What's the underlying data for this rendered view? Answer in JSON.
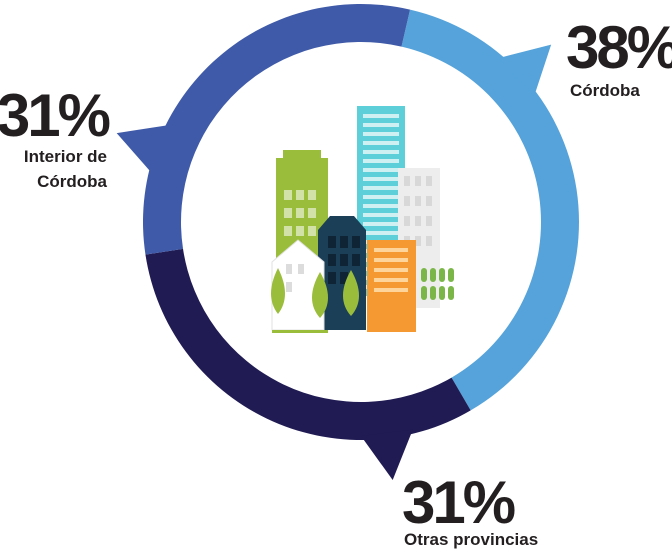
{
  "chart_data": {
    "type": "pie",
    "categories": [
      "Córdoba",
      "Otras provincias",
      "Interior de Córdoba"
    ],
    "values": [
      38,
      31,
      31
    ],
    "value_labels": [
      "38%",
      "31%",
      "31%"
    ],
    "label_lines": [
      [
        "Córdoba"
      ],
      [
        "Otras provincias"
      ],
      [
        "Interior de",
        "Córdoba"
      ]
    ],
    "colors": [
      "#55a3da",
      "#201b53",
      "#3f5aa8"
    ],
    "title": "",
    "legend": "none",
    "style": "donut with callout pointers and city illustration in center"
  },
  "illustration": {
    "icon": "city-buildings-icon",
    "colors": {
      "green": "#9bbd3c",
      "teal": "#5ccfd9",
      "navy": "#1c3f58",
      "orange": "#f59a32",
      "grey": "#e4e4e4",
      "leaf": "#7ab648"
    }
  }
}
